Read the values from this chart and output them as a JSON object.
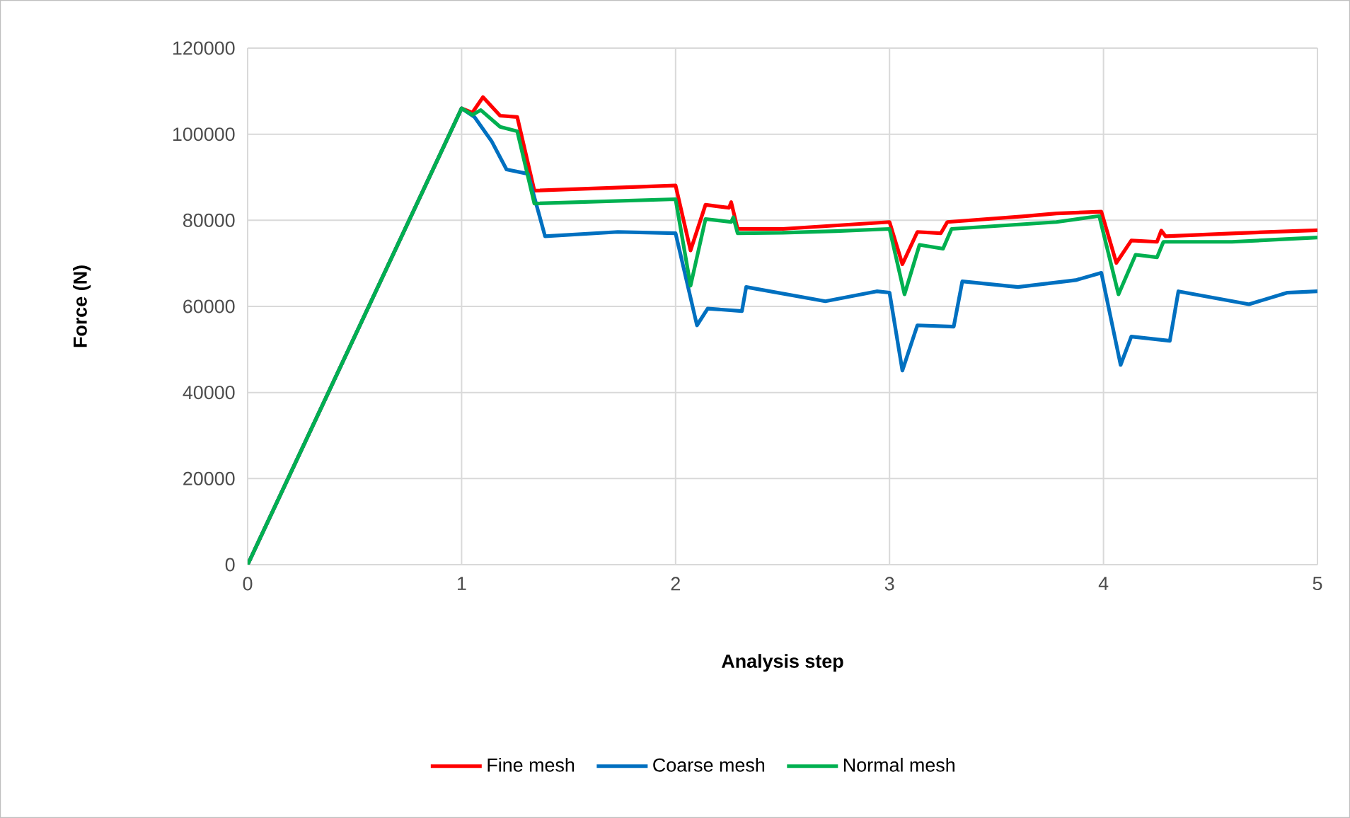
{
  "chart_data": {
    "type": "line",
    "xlabel": "Analysis step",
    "ylabel": "Force (N)",
    "xlim": [
      0,
      5
    ],
    "xticks": [
      0,
      1,
      2,
      3,
      4,
      5
    ],
    "ylim": [
      0,
      120000
    ],
    "yticks": [
      0,
      20000,
      40000,
      60000,
      80000,
      100000,
      120000
    ],
    "grid": true,
    "legend": "bottom",
    "marker": "none",
    "line_style": "solid",
    "series": [
      {
        "name": "Fine mesh",
        "color": "#ff0000",
        "x": [
          0,
          1,
          1.05,
          1.1,
          1.18,
          1.26,
          1.34,
          2.0,
          2.07,
          2.14,
          2.25,
          2.26,
          2.29,
          2.5,
          2.75,
          3.0,
          3.06,
          3.13,
          3.24,
          3.27,
          3.62,
          3.78,
          3.99,
          4.06,
          4.13,
          4.25,
          4.27,
          4.29,
          4.62,
          5.0
        ],
        "values": [
          0,
          106000,
          105000,
          108600,
          104300,
          104000,
          86900,
          88100,
          73000,
          83600,
          82900,
          84200,
          78000,
          78000,
          78800,
          79600,
          69800,
          77300,
          77000,
          79600,
          80900,
          81600,
          82000,
          70100,
          75300,
          75000,
          77600,
          76300,
          77000,
          77700
        ]
      },
      {
        "name": "Coarse mesh",
        "color": "#0070c0",
        "x": [
          0,
          1,
          1.06,
          1.14,
          1.21,
          1.31,
          1.39,
          1.73,
          2.0,
          2.1,
          2.15,
          2.31,
          2.33,
          2.7,
          2.94,
          3.0,
          3.06,
          3.13,
          3.3,
          3.34,
          3.6,
          3.87,
          3.99,
          4.08,
          4.13,
          4.31,
          4.35,
          4.68,
          4.86,
          5.0
        ],
        "values": [
          0,
          106000,
          104000,
          98400,
          91800,
          90800,
          76300,
          77300,
          77000,
          55600,
          59500,
          58900,
          64500,
          61200,
          63500,
          63200,
          45100,
          55600,
          55300,
          65800,
          64500,
          66100,
          67800,
          46400,
          53000,
          52000,
          63500,
          60500,
          63200,
          63500
        ]
      },
      {
        "name": "Normal mesh",
        "color": "#00b050",
        "x": [
          0,
          1,
          1.05,
          1.09,
          1.18,
          1.26,
          1.34,
          2.0,
          2.07,
          2.14,
          2.26,
          2.27,
          2.29,
          2.5,
          2.75,
          3.0,
          3.07,
          3.14,
          3.25,
          3.29,
          3.78,
          3.98,
          4.07,
          4.15,
          4.25,
          4.28,
          4.6,
          5.0
        ],
        "values": [
          0,
          106000,
          104500,
          105600,
          101700,
          100700,
          83900,
          84900,
          64800,
          80300,
          79600,
          80700,
          77000,
          77100,
          77500,
          78000,
          62800,
          74300,
          73400,
          78000,
          79600,
          81000,
          62800,
          72000,
          71400,
          75000,
          75000,
          76000
        ]
      }
    ]
  }
}
